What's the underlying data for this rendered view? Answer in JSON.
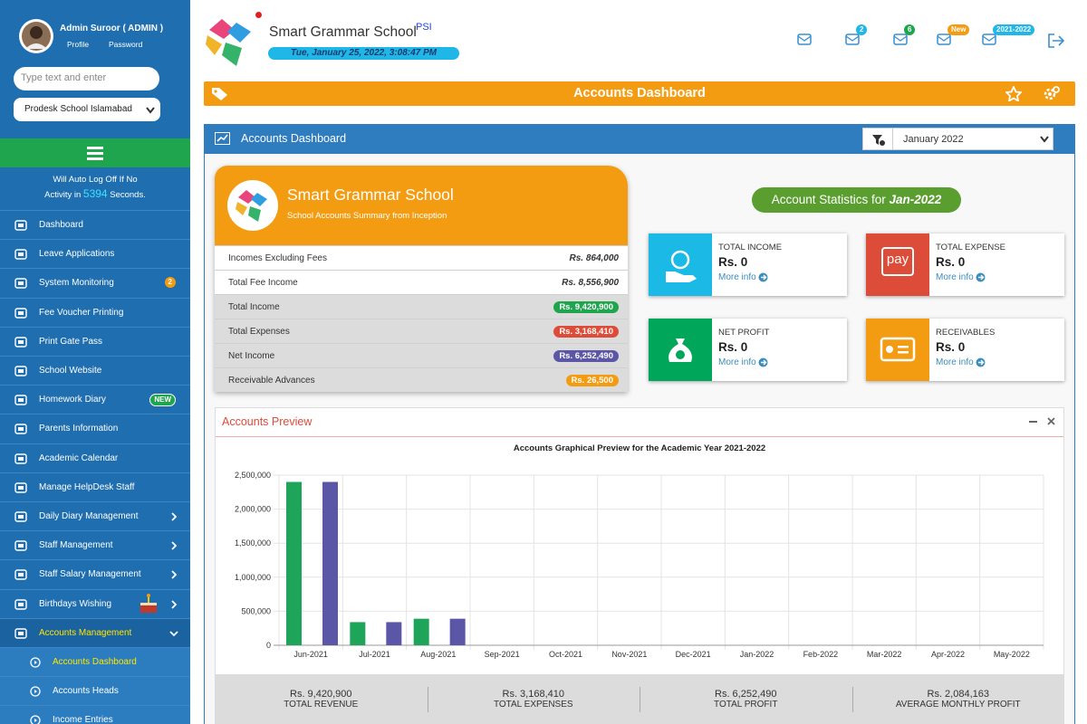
{
  "sidebar": {
    "user": "Admin Suroor ( ADMIN )",
    "links": [
      "Profile",
      "Password"
    ],
    "search": "Type text and enter",
    "school": "Prodesk School Islamabad",
    "autolog": {
      "line1": "Will Auto Log Off If No",
      "line2": "Activity in",
      "seconds": "5394",
      "suffix": "Seconds."
    },
    "menu": [
      {
        "label": "Dashboard"
      },
      {
        "label": "Leave Applications"
      },
      {
        "label": "System Monitoring",
        "badge": "2"
      },
      {
        "label": "Fee Voucher Printing"
      },
      {
        "label": "Print Gate Pass"
      },
      {
        "label": "School Website"
      },
      {
        "label": "Homework Diary",
        "badge": "NEW"
      },
      {
        "label": "Parents Information"
      },
      {
        "label": "Academic Calendar"
      },
      {
        "label": "Manage HelpDesk Staff"
      },
      {
        "label": "Daily Diary Management"
      },
      {
        "label": "Staff Management"
      },
      {
        "label": "Staff Salary Management"
      },
      {
        "label": "Birthdays Wishing"
      },
      {
        "label": "Accounts Management"
      },
      {
        "label": "Accounts Dashboard"
      },
      {
        "label": "Accounts Heads"
      },
      {
        "label": "Income Entries"
      }
    ]
  },
  "header": {
    "school": "Smart Grammar School",
    "tag": "PSI",
    "datetime": "Tue, January 25, 2022, 3:08:47 PM",
    "badges": [
      "2",
      "6",
      "New",
      "2021-2022"
    ]
  },
  "banner": {
    "title": "Accounts Dashboard"
  },
  "panel": {
    "title": "Accounts Dashboard",
    "filter": "January 2022"
  },
  "summary": {
    "school": "Smart Grammar School",
    "subtitle": "School Accounts Summary from Inception",
    "rows": [
      [
        "Incomes Excluding Fees",
        "Rs. 864,000"
      ],
      [
        "Total Fee Income",
        "Rs. 8,556,900"
      ],
      [
        "Total Income",
        "Rs. 9,420,900"
      ],
      [
        "Total Expenses",
        "Rs. 3,168,410"
      ],
      [
        "Net Income",
        "Rs. 6,252,490"
      ],
      [
        "Receivable Advances",
        "Rs. 26,500"
      ]
    ]
  },
  "stats": {
    "title": "Account Statistics for",
    "period": "Jan-2022",
    "pay_icon": "pay",
    "boxes": [
      {
        "label": "TOTAL INCOME",
        "value": "Rs. 0",
        "more": "More info"
      },
      {
        "label": "TOTAL EXPENSE",
        "value": "Rs. 0",
        "more": "More info"
      },
      {
        "label": "NET PROFIT",
        "value": "Rs. 0",
        "more": "More info"
      },
      {
        "label": "RECEIVABLES",
        "value": "Rs. 0",
        "more": "More info"
      }
    ]
  },
  "preview": {
    "title": "Accounts Preview"
  },
  "chart_data": {
    "type": "bar",
    "title": "Accounts Graphical Preview for the Academic Year 2021-2022",
    "categories": [
      "Jun-2021",
      "Jul-2021",
      "Aug-2021",
      "Sep-2021",
      "Oct-2021",
      "Nov-2021",
      "Dec-2021",
      "Jan-2022",
      "Feb-2022",
      "Mar-2022",
      "Apr-2022",
      "May-2022"
    ],
    "series": [
      {
        "color": "#1ea55a",
        "values": [
          2400000,
          340000,
          390000,
          0,
          0,
          0,
          0,
          0,
          0,
          0,
          0,
          0
        ]
      },
      {
        "color": "#5b57a6",
        "values": [
          2400000,
          340000,
          390000,
          0,
          0,
          0,
          0,
          0,
          0,
          0,
          0,
          0
        ]
      }
    ],
    "ylim": [
      0,
      2500000
    ],
    "yticks": [
      0,
      {
        "value": 500000,
        "label": "500,000"
      },
      {
        "value": 1000000,
        "label": "1,000,000"
      },
      {
        "value": 1500000,
        "label": "1,500,000"
      },
      {
        "value": 2000000,
        "label": "2,000,000"
      },
      {
        "value": 2500000,
        "label": "2,500,000"
      }
    ],
    "grid": true
  },
  "totals": [
    {
      "value": "Rs. 9,420,900",
      "label": "TOTAL REVENUE"
    },
    {
      "value": "Rs. 3,168,410",
      "label": "TOTAL EXPENSES"
    },
    {
      "value": "Rs. 6,252,490",
      "label": "TOTAL PROFIT"
    },
    {
      "value": "Rs. 2,084,163",
      "label": "AVERAGE MONTHLY PROFIT"
    }
  ]
}
